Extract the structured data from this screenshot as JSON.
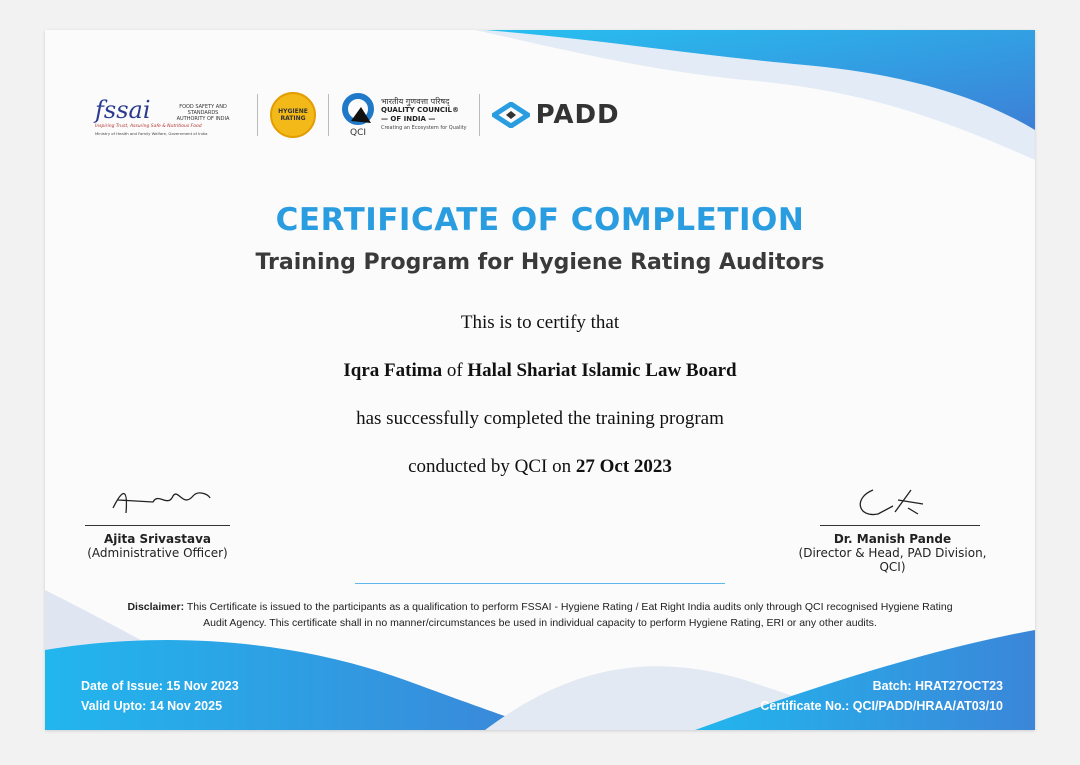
{
  "logos": {
    "fssai": {
      "mark": "fssai",
      "authority": "FOOD SAFETY AND STANDARDS AUTHORITY OF INDIA",
      "tagline": "Inspiring Trust, Assuring Safe & Nutritious Food",
      "ministry": "Ministry of Health and Family Welfare, Government of India"
    },
    "hygiene_rating": "HYGIENE RATING",
    "qci": {
      "hindi": "भारतीय गुणवत्ता परिषद्",
      "name": "QUALITY COUNCIL®",
      "sub": "— OF INDIA —",
      "abbr": "QCI",
      "tagline": "Creating an Ecosystem for Quality"
    },
    "padd": "PADD"
  },
  "title": "CERTIFICATE OF COMPLETION",
  "subtitle": "Training Program for Hygiene Rating Auditors",
  "body": {
    "intro": "This is to certify that",
    "name": "Iqra Fatima",
    "of": "of",
    "organization": "Halal Shariat Islamic Law Board",
    "completed": "has successfully completed the training program",
    "conducted": "conducted by QCI on",
    "date": "27 Oct 2023"
  },
  "signatories": [
    {
      "name": "Ajita Srivastava",
      "role": "(Administrative Officer)"
    },
    {
      "name": "Dr. Manish Pande",
      "role": "(Director & Head, PAD Division, QCI)"
    }
  ],
  "disclaimer": {
    "label": "Disclaimer:",
    "text": "This Certificate is issued to the participants as a qualification to perform FSSAI - Hygiene Rating  / Eat Right India audits only through QCI recognised Hygiene Rating Audit Agency. This certificate shall in no manner/circumstances be used in individual capacity to perform Hygiene Rating, ERI or any other audits."
  },
  "footer": {
    "issue": "Date of Issue: 15 Nov 2023",
    "valid": "Valid Upto:  14 Nov 2025",
    "batch": "Batch: HRAT27OCT23",
    "cert_no": "Certificate No.: QCI/PADD/HRAA/AT03/10"
  },
  "colors": {
    "accent": "#2a9de0",
    "wave": "#1fa6e6"
  }
}
